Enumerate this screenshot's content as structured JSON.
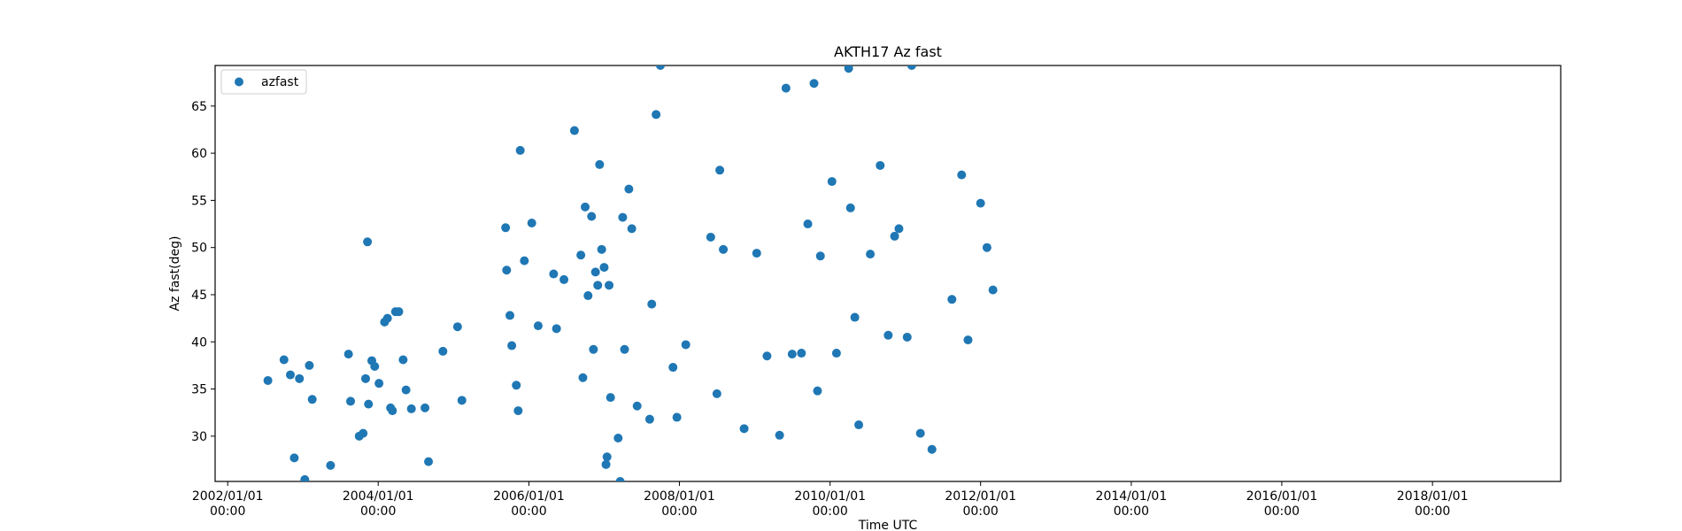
{
  "chart_data": {
    "type": "scatter",
    "title": "AKTH17 Az fast",
    "xlabel": "Time UTC",
    "ylabel": "Az fast(deg)",
    "x_is_date": true,
    "xlim": [
      "2001/11/01",
      "2019/09/15"
    ],
    "ylim": [
      25.2,
      69.3
    ],
    "x_ticks": [
      {
        "date": "2002/01/01",
        "line1": "2002/01/01",
        "line2": "00:00"
      },
      {
        "date": "2004/01/01",
        "line1": "2004/01/01",
        "line2": "00:00"
      },
      {
        "date": "2006/01/01",
        "line1": "2006/01/01",
        "line2": "00:00"
      },
      {
        "date": "2008/01/01",
        "line1": "2008/01/01",
        "line2": "00:00"
      },
      {
        "date": "2010/01/01",
        "line1": "2010/01/01",
        "line2": "00:00"
      },
      {
        "date": "2012/01/01",
        "line1": "2012/01/01",
        "line2": "00:00"
      },
      {
        "date": "2014/01/01",
        "line1": "2014/01/01",
        "line2": "00:00"
      },
      {
        "date": "2016/01/01",
        "line1": "2016/01/01",
        "line2": "00:00"
      },
      {
        "date": "2018/01/01",
        "line1": "2018/01/01",
        "line2": "00:00"
      }
    ],
    "y_ticks": [
      30,
      35,
      40,
      45,
      50,
      55,
      60,
      65
    ],
    "grid": false,
    "legend_position": "top-left",
    "series": [
      {
        "name": "azfast",
        "color": "#1f77b4",
        "marker": "circle",
        "points": [
          [
            "2002/07/15",
            35.9
          ],
          [
            "2002/10/01",
            38.1
          ],
          [
            "2002/11/01",
            36.5
          ],
          [
            "2002/11/20",
            27.7
          ],
          [
            "2002/12/15",
            36.1
          ],
          [
            "2003/01/10",
            25.4
          ],
          [
            "2003/02/01",
            37.5
          ],
          [
            "2003/02/15",
            33.9
          ],
          [
            "2003/05/15",
            26.9
          ],
          [
            "2003/08/10",
            38.7
          ],
          [
            "2003/08/20",
            33.7
          ],
          [
            "2003/10/01",
            30.0
          ],
          [
            "2003/10/20",
            30.3
          ],
          [
            "2003/11/01",
            36.1
          ],
          [
            "2003/11/10",
            50.6
          ],
          [
            "2003/11/15",
            33.4
          ],
          [
            "2003/12/01",
            38.0
          ],
          [
            "2003/12/15",
            37.4
          ],
          [
            "2004/01/05",
            35.6
          ],
          [
            "2004/02/01",
            42.1
          ],
          [
            "2004/02/15",
            42.5
          ],
          [
            "2004/03/01",
            33.0
          ],
          [
            "2004/03/10",
            32.7
          ],
          [
            "2004/03/25",
            43.2
          ],
          [
            "2004/04/10",
            43.2
          ],
          [
            "2004/05/01",
            38.1
          ],
          [
            "2004/05/15",
            34.9
          ],
          [
            "2004/06/10",
            32.9
          ],
          [
            "2004/08/15",
            33.0
          ],
          [
            "2004/09/01",
            27.3
          ],
          [
            "2004/11/10",
            39.0
          ],
          [
            "2005/01/20",
            41.6
          ],
          [
            "2005/02/10",
            33.8
          ],
          [
            "2005/09/10",
            52.1
          ],
          [
            "2005/09/15",
            47.6
          ],
          [
            "2005/10/01",
            42.8
          ],
          [
            "2005/10/10",
            39.6
          ],
          [
            "2005/11/01",
            35.4
          ],
          [
            "2005/11/10",
            32.7
          ],
          [
            "2005/11/20",
            60.3
          ],
          [
            "2005/12/10",
            48.6
          ],
          [
            "2006/01/15",
            52.6
          ],
          [
            "2006/02/15",
            41.7
          ],
          [
            "2006/05/01",
            47.2
          ],
          [
            "2006/05/15",
            41.4
          ],
          [
            "2006/06/20",
            46.6
          ],
          [
            "2006/08/10",
            62.4
          ],
          [
            "2006/09/10",
            49.2
          ],
          [
            "2006/09/20",
            36.2
          ],
          [
            "2006/10/01",
            54.3
          ],
          [
            "2006/10/15",
            44.9
          ],
          [
            "2006/11/01",
            53.3
          ],
          [
            "2006/11/10",
            39.2
          ],
          [
            "2006/11/20",
            47.4
          ],
          [
            "2006/12/01",
            46.0
          ],
          [
            "2006/12/10",
            58.8
          ],
          [
            "2006/12/20",
            49.8
          ],
          [
            "2007/01/01",
            47.9
          ],
          [
            "2007/01/10",
            27.0
          ],
          [
            "2007/01/15",
            27.8
          ],
          [
            "2007/01/25",
            46.0
          ],
          [
            "2007/02/01",
            34.1
          ],
          [
            "2007/03/10",
            29.8
          ],
          [
            "2007/03/20",
            25.2
          ],
          [
            "2007/04/01",
            53.2
          ],
          [
            "2007/04/10",
            39.2
          ],
          [
            "2007/05/01",
            56.2
          ],
          [
            "2007/05/15",
            52.0
          ],
          [
            "2007/06/10",
            33.2
          ],
          [
            "2007/08/10",
            31.8
          ],
          [
            "2007/08/20",
            44.0
          ],
          [
            "2007/09/10",
            64.1
          ],
          [
            "2007/10/01",
            69.3
          ],
          [
            "2007/12/01",
            37.3
          ],
          [
            "2007/12/20",
            32.0
          ],
          [
            "2008/02/01",
            39.7
          ],
          [
            "2008/06/01",
            51.1
          ],
          [
            "2008/07/01",
            34.5
          ],
          [
            "2008/07/15",
            58.2
          ],
          [
            "2008/08/01",
            49.8
          ],
          [
            "2008/11/10",
            30.8
          ],
          [
            "2009/01/10",
            49.4
          ],
          [
            "2009/03/01",
            38.5
          ],
          [
            "2009/05/01",
            30.1
          ],
          [
            "2009/06/01",
            66.9
          ],
          [
            "2009/07/01",
            38.7
          ],
          [
            "2009/08/15",
            38.8
          ],
          [
            "2009/09/15",
            52.5
          ],
          [
            "2009/10/15",
            67.4
          ],
          [
            "2009/11/01",
            34.8
          ],
          [
            "2009/11/15",
            49.1
          ],
          [
            "2010/01/10",
            57.0
          ],
          [
            "2010/02/01",
            38.8
          ],
          [
            "2010/04/01",
            69.0
          ],
          [
            "2010/04/10",
            54.2
          ],
          [
            "2010/05/01",
            42.6
          ],
          [
            "2010/05/20",
            31.2
          ],
          [
            "2010/07/15",
            49.3
          ],
          [
            "2010/09/01",
            58.7
          ],
          [
            "2010/10/10",
            40.7
          ],
          [
            "2010/11/10",
            51.2
          ],
          [
            "2010/12/01",
            52.0
          ],
          [
            "2011/01/10",
            40.5
          ],
          [
            "2011/02/01",
            69.3
          ],
          [
            "2011/03/15",
            30.3
          ],
          [
            "2011/05/10",
            28.6
          ],
          [
            "2011/08/15",
            44.5
          ],
          [
            "2011/10/01",
            57.7
          ],
          [
            "2011/11/01",
            40.2
          ],
          [
            "2012/01/01",
            54.7
          ],
          [
            "2012/02/01",
            50.0
          ],
          [
            "2012/03/01",
            45.5
          ]
        ]
      }
    ]
  },
  "legend": {
    "label": "azfast"
  }
}
